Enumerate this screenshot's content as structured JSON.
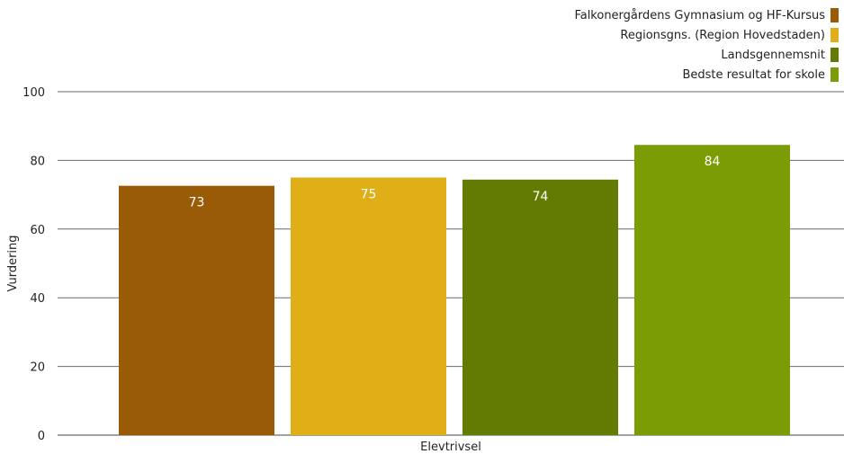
{
  "chart_data": {
    "type": "bar",
    "categories": [
      "Elevtrivsel"
    ],
    "series": [
      {
        "name": "Falkonergårdens Gymnasium og HF-Kursus",
        "value": 72.6,
        "label": "73",
        "color": "#9a5b06"
      },
      {
        "name": "Regionsgns. (Region Hovedstaden)",
        "value": 75,
        "label": "75",
        "color": "#e0ae16"
      },
      {
        "name": "Landsgennemsnit",
        "value": 74.4,
        "label": "74",
        "color": "#627b02"
      },
      {
        "name": "Bedste resultat for skole",
        "value": 84.5,
        "label": "84",
        "color": "#7b9c04"
      }
    ],
    "ylabel": "Vurdering",
    "xlabel": "Elevtrivsel",
    "ylim": [
      0,
      100
    ],
    "yticks": [
      "0",
      "20",
      "40",
      "60",
      "80",
      "100"
    ],
    "grid": true,
    "legend_position": "top-right"
  }
}
